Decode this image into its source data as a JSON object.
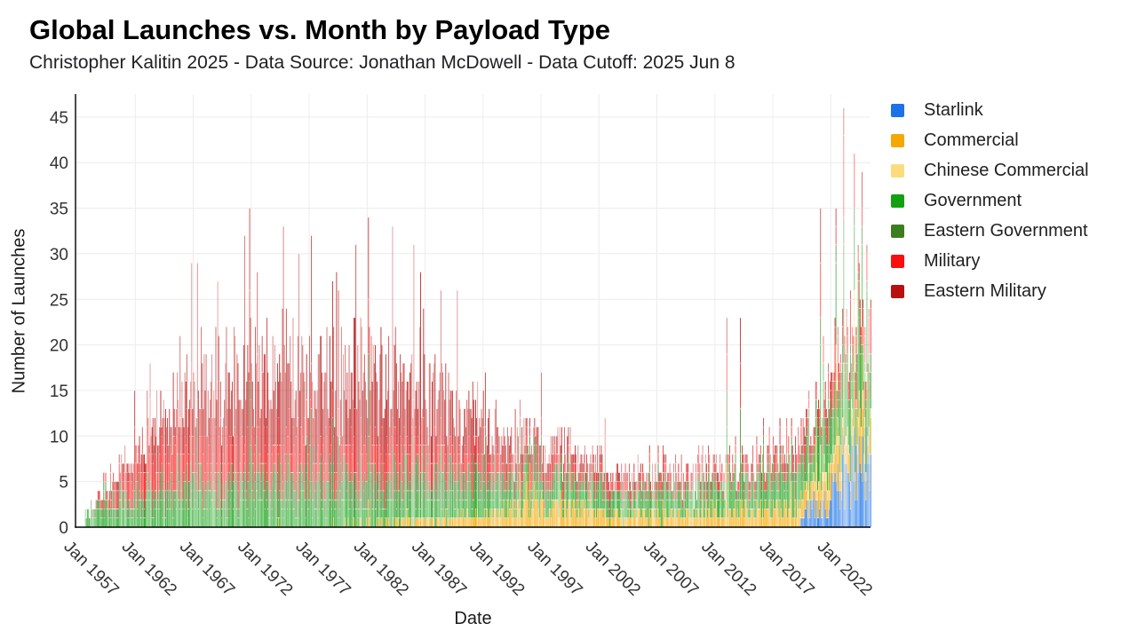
{
  "chart_data": {
    "type": "bar",
    "stacked": true,
    "bar_unit": "month",
    "title": "Global Launches vs. Month by Payload Type",
    "subtitle": "Christopher Kalitin 2025 - Data Source: Jonathan McDowell - Data Cutoff: 2025 Jun 8",
    "xlabel": "Date",
    "ylabel": "Number of Launches",
    "x_start": "1957-09",
    "x_end": "2025-06",
    "x_ticks": [
      "Jan 1957",
      "Jan 1962",
      "Jan 1967",
      "Jan 1972",
      "Jan 1977",
      "Jan 1982",
      "Jan 1987",
      "Jan 1992",
      "Jan 1997",
      "Jan 2002",
      "Jan 2007",
      "Jan 2012",
      "Jan 2017",
      "Jan 2022"
    ],
    "y_ticks": [
      0,
      5,
      10,
      15,
      20,
      25,
      30,
      35,
      40,
      45
    ],
    "ylim": [
      0,
      47.5
    ],
    "grid": true,
    "grid_color": "#ececec",
    "axis_color": "#000000",
    "tick_label_color": "#333333",
    "legend_position": "top-right",
    "bar_opacity_range": [
      0.38,
      0.93
    ],
    "noise_seed": 42,
    "series": [
      {
        "name": "Starlink",
        "color": "#1a73e8",
        "trend_keyframes": [
          [
            2019.2,
            0
          ],
          [
            2019.7,
            1.5
          ],
          [
            2020.5,
            2.2
          ],
          [
            2021.5,
            2.8
          ],
          [
            2022.5,
            4.5
          ],
          [
            2023.5,
            6
          ],
          [
            2024.5,
            7.5
          ],
          [
            2025.5,
            8.5
          ]
        ]
      },
      {
        "name": "Commercial",
        "color": "#f6a800",
        "trend_keyframes": [
          [
            1962,
            0
          ],
          [
            1965,
            0.15
          ],
          [
            1975,
            0.25
          ],
          [
            1983,
            0.4
          ],
          [
            1988,
            0.9
          ],
          [
            1992,
            1.4
          ],
          [
            1997,
            2.4
          ],
          [
            2000,
            2.2
          ],
          [
            2003,
            1.1
          ],
          [
            2008,
            1.4
          ],
          [
            2013,
            1.7
          ],
          [
            2017,
            2.1
          ],
          [
            2020,
            2.5
          ],
          [
            2023,
            3.2
          ],
          [
            2025.5,
            3.8
          ]
        ]
      },
      {
        "name": "Chinese Commercial",
        "color": "#fbdc7d",
        "trend_keyframes": [
          [
            2018,
            0
          ],
          [
            2019.2,
            0.3
          ],
          [
            2021,
            0.7
          ],
          [
            2023,
            1.0
          ],
          [
            2025.5,
            1.3
          ]
        ]
      },
      {
        "name": "Government",
        "color": "#12a112",
        "trend_keyframes": [
          [
            1957.6,
            1.1
          ],
          [
            1960,
            1.8
          ],
          [
            1964,
            2.4
          ],
          [
            1970,
            2.5
          ],
          [
            1980,
            2.2
          ],
          [
            1990,
            2.2
          ],
          [
            1995,
            2.0
          ],
          [
            2000,
            1.8
          ],
          [
            2005,
            1.5
          ],
          [
            2010,
            2.0
          ],
          [
            2015,
            2.5
          ],
          [
            2018,
            3.0
          ],
          [
            2020,
            3.5
          ],
          [
            2022,
            4.5
          ],
          [
            2025.5,
            5.5
          ]
        ]
      },
      {
        "name": "Eastern Government",
        "color": "#3c7d1f",
        "trend_keyframes": [
          [
            1957.6,
            0.6
          ],
          [
            1960,
            1.2
          ],
          [
            1965,
            2.2
          ],
          [
            1975,
            3.0
          ],
          [
            1985,
            3.0
          ],
          [
            1990,
            2.5
          ],
          [
            1993,
            1.8
          ],
          [
            1997,
            1.2
          ],
          [
            2005,
            1.0
          ],
          [
            2025.5,
            1.0
          ]
        ]
      },
      {
        "name": "Military",
        "color": "#fa0f0f",
        "trend_keyframes": [
          [
            1957.9,
            0
          ],
          [
            1958.5,
            0.4
          ],
          [
            1960,
            1.3
          ],
          [
            1963,
            3.2
          ],
          [
            1966,
            4.0
          ],
          [
            1970,
            3.5
          ],
          [
            1980,
            2.8
          ],
          [
            1985,
            3.0
          ],
          [
            1990,
            2.0
          ],
          [
            1995,
            1.2
          ],
          [
            2000,
            1.0
          ],
          [
            2010,
            0.8
          ],
          [
            2015,
            1.0
          ],
          [
            2020,
            1.5
          ],
          [
            2025.5,
            2.5
          ]
        ]
      },
      {
        "name": "Eastern Military",
        "color": "#b80f0f",
        "trend_keyframes": [
          [
            1958.8,
            0
          ],
          [
            1959.5,
            0.3
          ],
          [
            1961,
            1.0
          ],
          [
            1963,
            2.5
          ],
          [
            1966,
            5.5
          ],
          [
            1970,
            7.5
          ],
          [
            1977,
            8.0
          ],
          [
            1983,
            8.5
          ],
          [
            1988,
            7.0
          ],
          [
            1991,
            4.5
          ],
          [
            1994,
            2.5
          ],
          [
            1998,
            1.8
          ],
          [
            2003,
            1.0
          ],
          [
            2010,
            0.8
          ],
          [
            2020,
            0.8
          ],
          [
            2025.5,
            1.2
          ]
        ]
      }
    ],
    "peak_months": [
      [
        1961.9,
        15
      ],
      [
        1965.8,
        21
      ],
      [
        1966.8,
        29
      ],
      [
        1967.3,
        29
      ],
      [
        1971.8,
        35
      ],
      [
        1972.5,
        28
      ],
      [
        1977.2,
        32
      ],
      [
        1982.1,
        34
      ],
      [
        1986.0,
        31
      ],
      [
        1988.3,
        26
      ],
      [
        1992.2,
        17
      ],
      [
        1997.0,
        17
      ],
      [
        2002.5,
        12
      ],
      [
        2013.0,
        23
      ],
      [
        2014.2,
        23
      ],
      [
        2021.1,
        35
      ],
      [
        2022.4,
        35
      ],
      [
        2023.1,
        46
      ],
      [
        2024.0,
        41
      ],
      [
        2024.7,
        39
      ]
    ]
  }
}
